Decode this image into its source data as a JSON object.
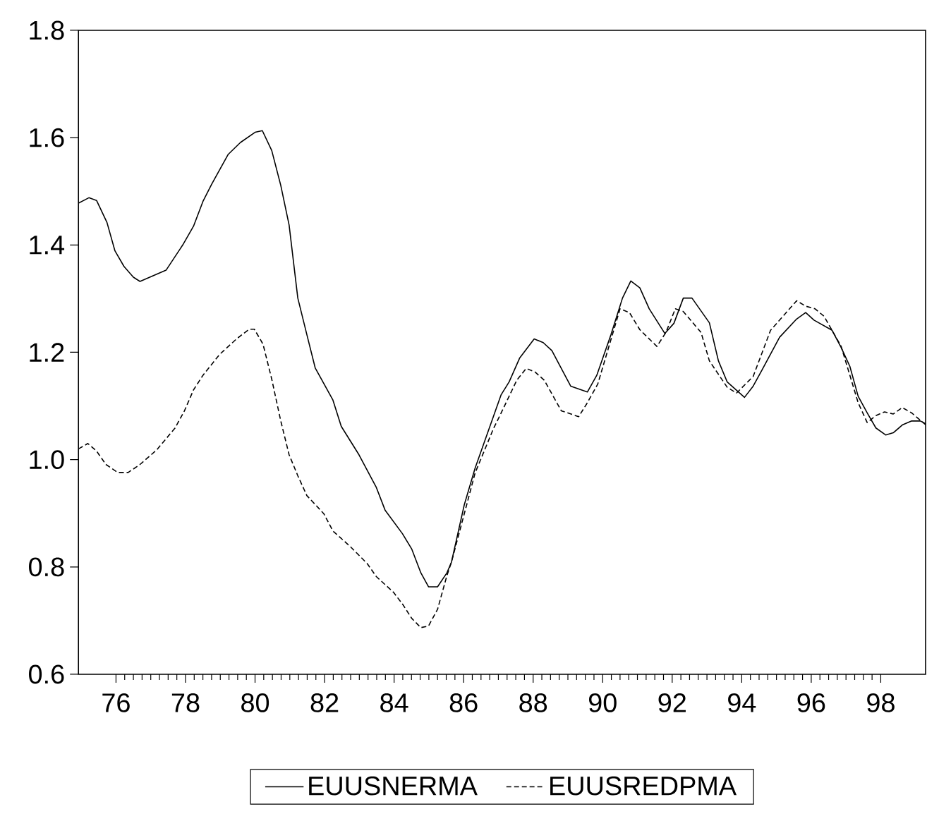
{
  "chart_data": {
    "type": "line",
    "xlim": [
      74.92,
      99.29
    ],
    "ylim": [
      0.6,
      1.8
    ],
    "xticks": [
      76,
      78,
      80,
      82,
      84,
      86,
      88,
      90,
      92,
      94,
      96,
      98
    ],
    "yticks": [
      {
        "value": 0.6,
        "label": "0.6"
      },
      {
        "value": 0.8,
        "label": "0.8"
      },
      {
        "value": 1.0,
        "label": "1.0"
      },
      {
        "value": 1.2,
        "label": "1.2"
      },
      {
        "value": 1.4,
        "label": "1.4"
      },
      {
        "value": 1.6,
        "label": "1.6"
      },
      {
        "value": 1.8,
        "label": "1.8"
      }
    ],
    "legend": "bottom",
    "grid": false,
    "series": [
      {
        "name": "EUUSNERMA",
        "color": "#000000",
        "line_style": "solid",
        "x": [
          74.92,
          75.22,
          75.44,
          75.74,
          75.97,
          76.23,
          76.5,
          76.69,
          77.44,
          77.92,
          78.23,
          78.5,
          78.75,
          79.23,
          79.58,
          80.0,
          80.21,
          80.48,
          80.74,
          80.98,
          81.23,
          81.49,
          81.73,
          82.24,
          82.48,
          82.99,
          83.49,
          83.74,
          84.24,
          84.51,
          84.77,
          84.99,
          85.25,
          85.52,
          85.65,
          86.02,
          86.33,
          87.08,
          87.31,
          87.61,
          88.03,
          88.29,
          88.54,
          89.08,
          89.56,
          89.83,
          90.24,
          90.57,
          90.81,
          91.07,
          91.34,
          91.79,
          92.05,
          92.32,
          92.57,
          93.07,
          93.33,
          93.58,
          94.08,
          94.33,
          94.6,
          95.09,
          95.58,
          95.84,
          96.08,
          96.6,
          96.86,
          97.11,
          97.35,
          97.61,
          97.86,
          98.14,
          98.36,
          98.63,
          98.89,
          99.14,
          99.29
        ],
        "values": [
          1.478,
          1.488,
          1.483,
          1.442,
          1.389,
          1.36,
          1.34,
          1.332,
          1.353,
          1.4,
          1.435,
          1.481,
          1.513,
          1.569,
          1.591,
          1.61,
          1.613,
          1.576,
          1.511,
          1.437,
          1.301,
          1.233,
          1.171,
          1.111,
          1.062,
          1.009,
          0.948,
          0.906,
          0.862,
          0.833,
          0.789,
          0.763,
          0.763,
          0.789,
          0.809,
          0.916,
          0.984,
          1.121,
          1.145,
          1.189,
          1.225,
          1.218,
          1.203,
          1.137,
          1.126,
          1.157,
          1.233,
          1.301,
          1.333,
          1.32,
          1.281,
          1.235,
          1.254,
          1.301,
          1.301,
          1.255,
          1.184,
          1.145,
          1.116,
          1.137,
          1.169,
          1.228,
          1.262,
          1.274,
          1.26,
          1.241,
          1.209,
          1.174,
          1.118,
          1.087,
          1.059,
          1.046,
          1.05,
          1.065,
          1.072,
          1.072,
          1.067
        ]
      },
      {
        "name": "EUUSREDPMA",
        "color": "#000000",
        "line_style": "dashed",
        "x": [
          74.92,
          75.19,
          75.44,
          75.71,
          76.05,
          76.35,
          76.69,
          77.17,
          77.7,
          77.97,
          78.23,
          78.5,
          78.98,
          79.47,
          79.83,
          79.98,
          80.23,
          80.48,
          80.74,
          80.98,
          81.23,
          81.49,
          81.98,
          82.24,
          82.74,
          83.23,
          83.49,
          83.98,
          84.24,
          84.51,
          84.77,
          84.99,
          85.25,
          85.52,
          85.65,
          86.33,
          86.86,
          87.08,
          87.53,
          87.8,
          88.06,
          88.32,
          88.81,
          89.31,
          89.56,
          89.86,
          90.5,
          90.77,
          91.07,
          91.56,
          91.82,
          92.09,
          92.32,
          92.83,
          93.07,
          93.58,
          93.85,
          94.33,
          94.83,
          95.09,
          95.58,
          95.84,
          96.11,
          96.37,
          96.86,
          97.35,
          97.61,
          97.86,
          98.11,
          98.36,
          98.62,
          98.89,
          99.29
        ],
        "values": [
          1.02,
          1.03,
          1.016,
          0.991,
          0.976,
          0.976,
          0.991,
          1.018,
          1.059,
          1.091,
          1.13,
          1.157,
          1.196,
          1.225,
          1.243,
          1.243,
          1.215,
          1.15,
          1.072,
          1.009,
          0.97,
          0.933,
          0.899,
          0.867,
          0.838,
          0.806,
          0.782,
          0.753,
          0.731,
          0.704,
          0.687,
          0.69,
          0.721,
          0.784,
          0.809,
          0.975,
          1.058,
          1.087,
          1.148,
          1.17,
          1.163,
          1.148,
          1.091,
          1.08,
          1.106,
          1.141,
          1.281,
          1.274,
          1.242,
          1.211,
          1.237,
          1.281,
          1.276,
          1.237,
          1.184,
          1.135,
          1.124,
          1.155,
          1.241,
          1.26,
          1.296,
          1.286,
          1.281,
          1.267,
          1.211,
          1.106,
          1.069,
          1.082,
          1.089,
          1.085,
          1.097,
          1.087,
          1.065
        ]
      }
    ]
  }
}
